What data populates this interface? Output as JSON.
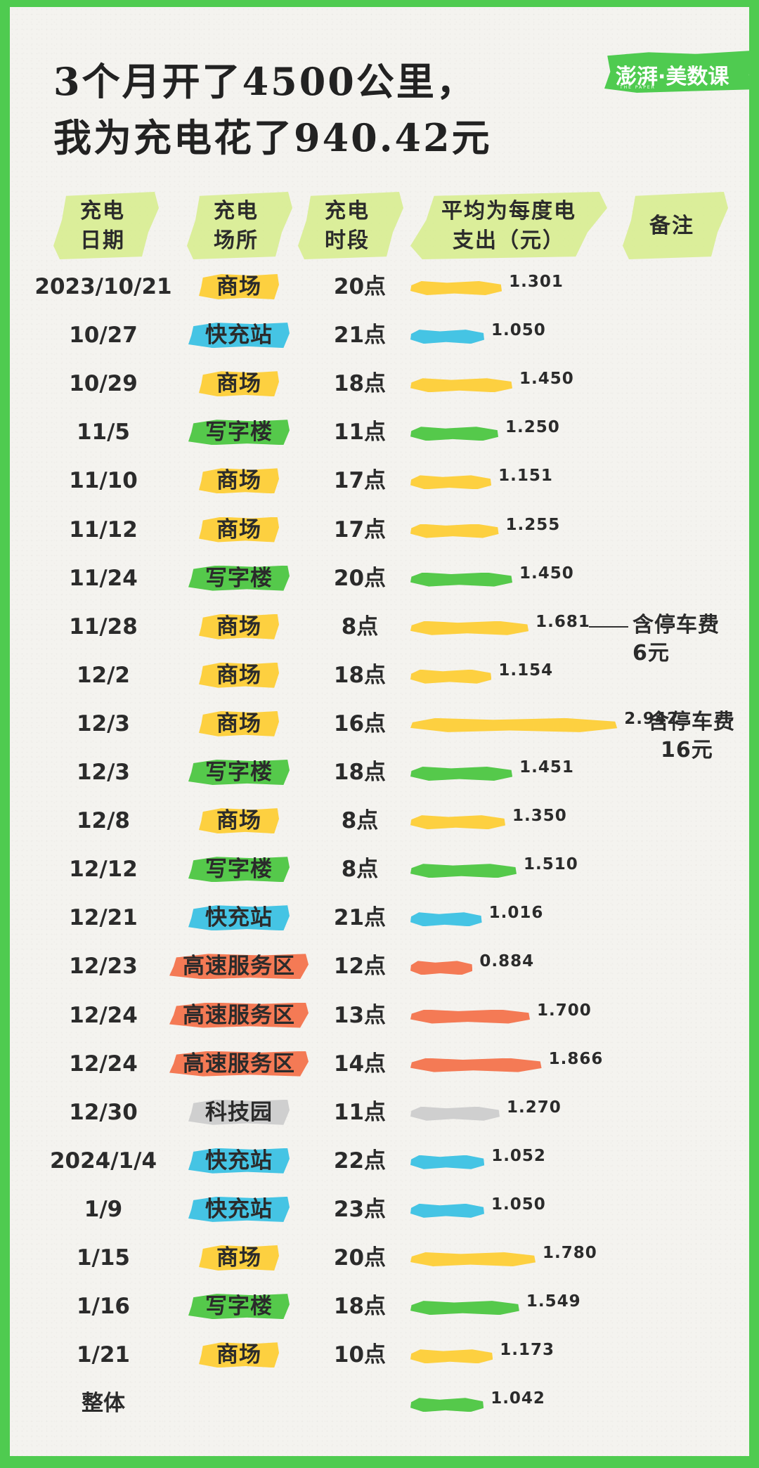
{
  "title_line1": "3个月开了4500公里，",
  "title_line2": "我为充电花了940.42元",
  "logo": {
    "name": "澎湃·美数课",
    "sub": "THE PAPER"
  },
  "headers": {
    "date": [
      "充电",
      "日期"
    ],
    "place": [
      "充电",
      "场所"
    ],
    "time": [
      "充电",
      "时段"
    ],
    "cost": [
      "平均为每度电",
      "支出（元）"
    ],
    "note": [
      "备注"
    ]
  },
  "colors": {
    "商场": "#fdd040",
    "快充站": "#45c4e4",
    "写字楼": "#55c94b",
    "高速服务区": "#f47a55",
    "科技园": "#cfcfcf",
    "整体": "#55c94b",
    "header": "#d6ec8b"
  },
  "chart_data": {
    "type": "bar",
    "orientation": "horizontal",
    "title": "3个月开了4500公里，我为充电花了940.42元",
    "columns": [
      "充电日期",
      "充电场所",
      "充电时段",
      "平均为每度电支出（元）",
      "备注"
    ],
    "rows": [
      {
        "date": "2023/10/21",
        "place": "商场",
        "time": "20点",
        "value": 1.301,
        "label": "1.301",
        "note": ""
      },
      {
        "date": "10/27",
        "place": "快充站",
        "time": "21点",
        "value": 1.05,
        "label": "1.050",
        "note": ""
      },
      {
        "date": "10/29",
        "place": "商场",
        "time": "18点",
        "value": 1.45,
        "label": "1.450",
        "note": ""
      },
      {
        "date": "11/5",
        "place": "写字楼",
        "time": "11点",
        "value": 1.25,
        "label": "1.250",
        "note": ""
      },
      {
        "date": "11/10",
        "place": "商场",
        "time": "17点",
        "value": 1.151,
        "label": "1.151",
        "note": ""
      },
      {
        "date": "11/12",
        "place": "商场",
        "time": "17点",
        "value": 1.255,
        "label": "1.255",
        "note": ""
      },
      {
        "date": "11/24",
        "place": "写字楼",
        "time": "20点",
        "value": 1.45,
        "label": "1.450",
        "note": ""
      },
      {
        "date": "11/28",
        "place": "商场",
        "time": "8点",
        "value": 1.681,
        "label": "1.681",
        "note": "含停车费6元"
      },
      {
        "date": "12/2",
        "place": "商场",
        "time": "18点",
        "value": 1.154,
        "label": "1.154",
        "note": ""
      },
      {
        "date": "12/3",
        "place": "商场",
        "time": "16点",
        "value": 2.942,
        "label": "2.942",
        "note": "含停车费16元"
      },
      {
        "date": "12/3",
        "place": "写字楼",
        "time": "18点",
        "value": 1.451,
        "label": "1.451",
        "note": ""
      },
      {
        "date": "12/8",
        "place": "商场",
        "time": "8点",
        "value": 1.35,
        "label": "1.350",
        "note": ""
      },
      {
        "date": "12/12",
        "place": "写字楼",
        "time": "8点",
        "value": 1.51,
        "label": "1.510",
        "note": ""
      },
      {
        "date": "12/21",
        "place": "快充站",
        "time": "21点",
        "value": 1.016,
        "label": "1.016",
        "note": ""
      },
      {
        "date": "12/23",
        "place": "高速服务区",
        "time": "12点",
        "value": 0.884,
        "label": "0.884",
        "note": ""
      },
      {
        "date": "12/24",
        "place": "高速服务区",
        "time": "13点",
        "value": 1.7,
        "label": "1.700",
        "note": ""
      },
      {
        "date": "12/24",
        "place": "高速服务区",
        "time": "14点",
        "value": 1.866,
        "label": "1.866",
        "note": ""
      },
      {
        "date": "12/30",
        "place": "科技园",
        "time": "11点",
        "value": 1.27,
        "label": "1.270",
        "note": ""
      },
      {
        "date": "2024/1/4",
        "place": "快充站",
        "time": "22点",
        "value": 1.052,
        "label": "1.052",
        "note": ""
      },
      {
        "date": "1/9",
        "place": "快充站",
        "time": "23点",
        "value": 1.05,
        "label": "1.050",
        "note": ""
      },
      {
        "date": "1/15",
        "place": "商场",
        "time": "20点",
        "value": 1.78,
        "label": "1.780",
        "note": ""
      },
      {
        "date": "1/16",
        "place": "写字楼",
        "time": "18点",
        "value": 1.549,
        "label": "1.549",
        "note": ""
      },
      {
        "date": "1/21",
        "place": "商场",
        "time": "10点",
        "value": 1.173,
        "label": "1.173",
        "note": ""
      },
      {
        "date": "整体",
        "place": "",
        "time": "",
        "value": 1.042,
        "label": "1.042",
        "note": ""
      }
    ],
    "notes": [
      {
        "row": 7,
        "lines": [
          "含停车费",
          "6元"
        ]
      },
      {
        "row": 9,
        "lines": [
          "含停车费",
          "16元"
        ]
      }
    ]
  }
}
